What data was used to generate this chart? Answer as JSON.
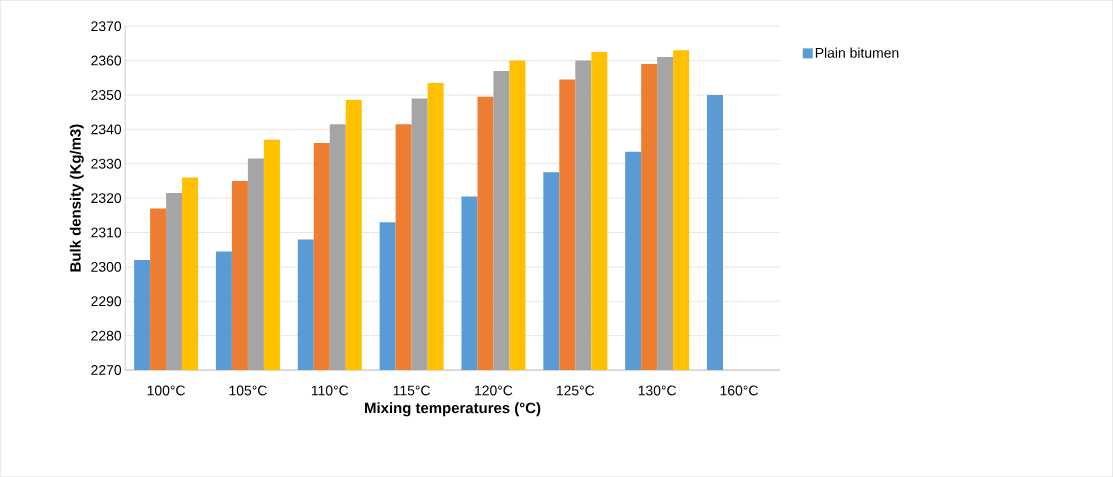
{
  "chart_data": {
    "type": "bar",
    "xlabel": "Mixing temperatures (°C)",
    "ylabel": "Bulk density (Kg/m3)",
    "categories": [
      "100°C",
      "105°C",
      "110°C",
      "115°C",
      "120°C",
      "125°C",
      "130°C",
      "160°C"
    ],
    "series": [
      {
        "name": "Plain bitumen",
        "color": "#5b9bd5",
        "values": [
          2302,
          2304.5,
          2308,
          2313,
          2320.5,
          2327.5,
          2333.5,
          2350
        ]
      },
      {
        "color": "#ed7d31",
        "values": [
          2317,
          2325,
          2336,
          2341.5,
          2349.5,
          2354.5,
          2359,
          null
        ]
      },
      {
        "color": "#a5a5a5",
        "values": [
          2321.5,
          2331.5,
          2341.5,
          2349,
          2357,
          2360,
          2361,
          null
        ]
      },
      {
        "color": "#ffc000",
        "values": [
          2326,
          2337,
          2348.5,
          2353.5,
          2360,
          2362.5,
          2363,
          null
        ]
      }
    ],
    "ylim": [
      2270,
      2370
    ],
    "yticks": [
      2270,
      2280,
      2290,
      2300,
      2310,
      2320,
      2330,
      2340,
      2350,
      2360,
      2370
    ],
    "grid": "y",
    "legend": "right"
  }
}
